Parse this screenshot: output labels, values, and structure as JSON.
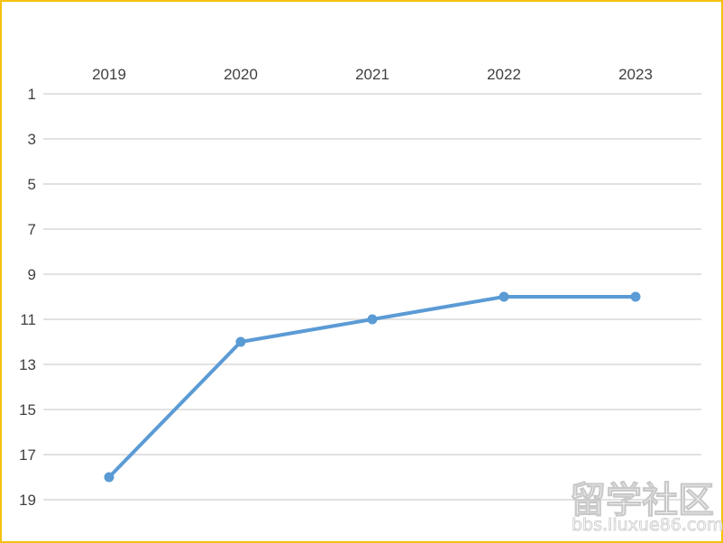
{
  "chart_data": {
    "type": "line",
    "title": "",
    "xlabel": "",
    "ylabel": "",
    "categories": [
      "2019",
      "2020",
      "2021",
      "2022",
      "2023"
    ],
    "series": [
      {
        "values": [
          18,
          12,
          11,
          10,
          10
        ],
        "color": "#5b9bd5"
      }
    ],
    "y_axis": {
      "ticks": [
        "1",
        "3",
        "5",
        "7",
        "9",
        "11",
        "13",
        "15",
        "17",
        "19"
      ],
      "ylim": [
        1,
        19
      ],
      "reversed": true
    },
    "x_axis_position": "top",
    "grid": true,
    "legend": "none"
  },
  "watermark": {
    "main": "留学社区",
    "sub": "bbs.liuxue86.com"
  },
  "colors": {
    "frame_border": "#f4c20d",
    "grid": "#d9d9d9",
    "text": "#404040"
  }
}
